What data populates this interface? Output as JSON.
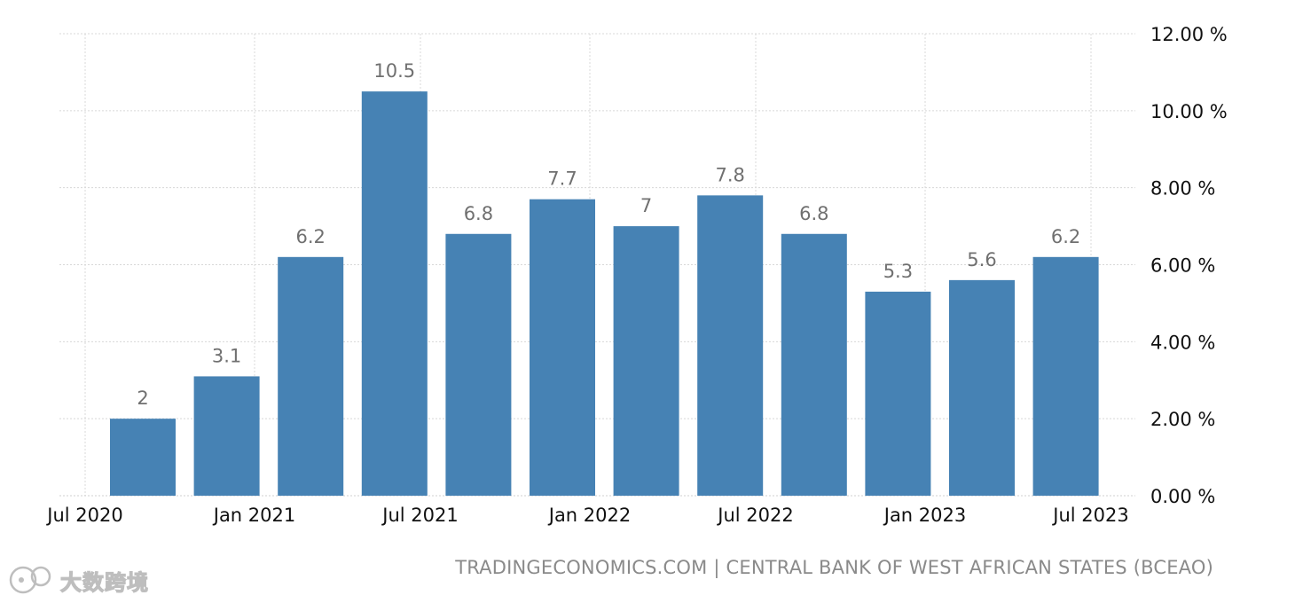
{
  "chart_data": {
    "type": "bar",
    "categories": [
      "2020-Q3",
      "2020-Q4",
      "2021-Q1",
      "2021-Q2",
      "2021-Q3",
      "2021-Q4",
      "2022-Q1",
      "2022-Q2",
      "2022-Q3",
      "2022-Q4",
      "2023-Q1",
      "2023-Q2"
    ],
    "values": [
      2,
      3.1,
      6.2,
      10.5,
      6.8,
      7.7,
      7,
      7.8,
      6.8,
      5.3,
      5.6,
      6.2
    ],
    "data_labels": [
      "2",
      "3.1",
      "6.2",
      "10.5",
      "6.8",
      "7.7",
      "7",
      "7.8",
      "6.8",
      "5.3",
      "5.6",
      "6.2"
    ],
    "x_tick_labels": [
      "Jul 2020",
      "Jan 2021",
      "Jul 2021",
      "Jan 2022",
      "Jul 2022",
      "Jan 2023",
      "Jul 2023"
    ],
    "y_tick_labels": [
      "0.00 %",
      "2.00 %",
      "4.00 %",
      "6.00 %",
      "8.00 %",
      "10.00 %",
      "12.00 %"
    ],
    "y_ticks": [
      0,
      2,
      4,
      6,
      8,
      10,
      12
    ],
    "ylim": [
      0,
      12
    ],
    "y_axis_side": "right",
    "grid": true,
    "bar_color": "#4682b4",
    "title": "",
    "xlabel": "",
    "ylabel": ""
  },
  "source": "TRADINGECONOMICS.COM | CENTRAL BANK OF WEST AFRICAN STATES (BCEAO)",
  "watermark": {
    "text": "大数跨境",
    "icon": "watermark-logo-icon"
  }
}
